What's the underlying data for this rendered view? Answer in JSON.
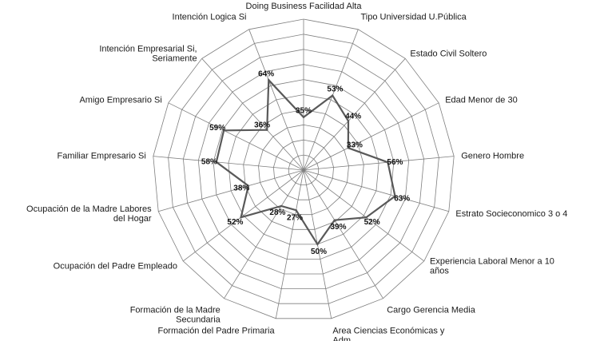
{
  "chart_data": {
    "type": "radar",
    "title": "",
    "max": 100,
    "rings": 10,
    "grid": true,
    "legend": "none",
    "categories": [
      "Doing Business Facilidad Alta",
      "Tipo Universidad U.Pública",
      "Estado Civil Soltero",
      "Edad Menor de 30",
      "Genero Hombre",
      "Estrato Socieconomico 3 o 4",
      "Experiencia Laboral Menor a 10 años",
      "Cargo Gerencia Media",
      "Area Ciencias Económicas y Adm.",
      "Formación del Padre Primaria",
      "Formación de la Madre Secundaria",
      "Ocupación del Padre Empleado",
      "Ocupación de la Madre Labores del Hogar",
      "Familiar Empresario Si",
      "Amigo Empresario Si",
      "Intención Empresarial Si, Seriamente",
      "Intención Logica Si"
    ],
    "values": [
      35,
      53,
      44,
      33,
      56,
      63,
      52,
      39,
      50,
      27,
      28,
      52,
      38,
      58,
      59,
      36,
      64
    ],
    "value_labels": [
      "35%",
      "53%",
      "44%",
      "33%",
      "56%",
      "63%",
      "52%",
      "39%",
      "50%",
      "27%",
      "28%",
      "52%",
      "38%",
      "58%",
      "59%",
      "36%",
      "64%"
    ],
    "colors": {
      "series": "#595959",
      "grid": "#7f7f7f",
      "text": "#1a1a1a"
    }
  }
}
